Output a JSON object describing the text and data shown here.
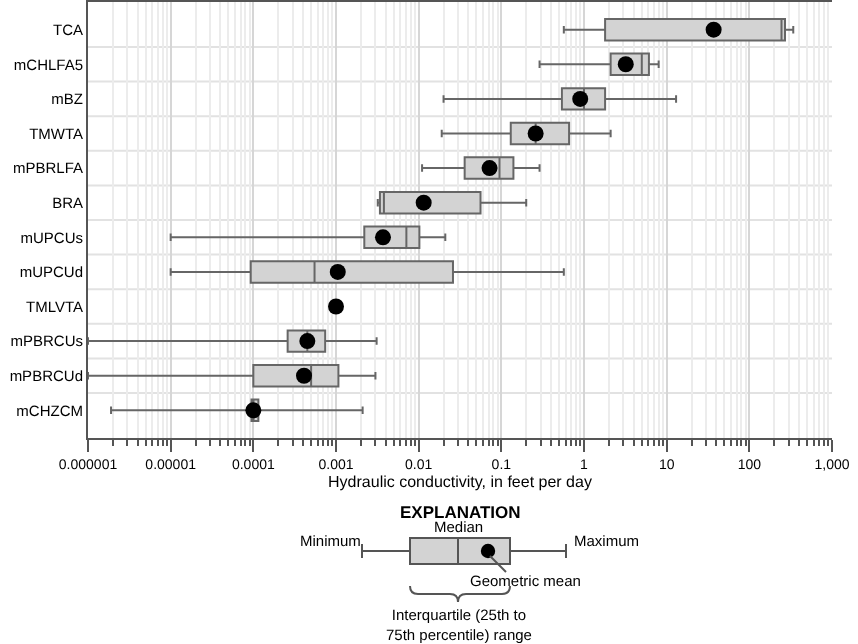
{
  "chart_data": {
    "type": "box",
    "orientation": "horizontal",
    "log": "x",
    "xlabel": "Hydraulic conductivity, in feet per day",
    "categories": [
      "TCA",
      "mCHLFA5",
      "mBZ",
      "TMWTA",
      "mPBRLFA",
      "BRA",
      "mUPCUs",
      "mUPCUd",
      "TMLVTA",
      "mPBRCUs",
      "mPBRCUd",
      "mCHZCM"
    ],
    "boxes": [
      {
        "low": 0.57,
        "q1": 1.8,
        "median": 245,
        "q3": 270,
        "high": 340,
        "mean": 37
      },
      {
        "low": 0.29,
        "q1": 2.1,
        "median": 5.0,
        "q3": 6.1,
        "high": 8.0,
        "mean": 3.2
      },
      {
        "low": 0.02,
        "q1": 0.54,
        "median": 1.0,
        "q3": 1.8,
        "high": 13,
        "mean": 0.9
      },
      {
        "low": 0.019,
        "q1": 0.13,
        "median": 0.26,
        "q3": 0.66,
        "high": 2.1,
        "mean": 0.26
      },
      {
        "low": 0.011,
        "q1": 0.036,
        "median": 0.095,
        "q3": 0.14,
        "high": 0.29,
        "mean": 0.072
      },
      {
        "low": 0.0032,
        "q1": 0.0034,
        "median": 0.0038,
        "q3": 0.056,
        "high": 0.2,
        "mean": 0.0115
      },
      {
        "low": 1e-05,
        "q1": 0.0022,
        "median": 0.0071,
        "q3": 0.0102,
        "high": 0.021,
        "mean": 0.0037
      },
      {
        "low": 1e-05,
        "q1": 9.3e-05,
        "median": 0.00055,
        "q3": 0.026,
        "high": 0.57,
        "mean": 0.00105
      },
      {
        "low": 0.001,
        "q1": 0.001,
        "median": 0.001,
        "q3": 0.001,
        "high": 0.001,
        "mean": 0.001
      },
      {
        "low": 1e-06,
        "q1": 0.00026,
        "median": 0.00045,
        "q3": 0.00074,
        "high": 0.0031,
        "mean": 0.00045
      },
      {
        "low": 1e-06,
        "q1": 0.0001,
        "median": 0.0005,
        "q3": 0.00107,
        "high": 0.003,
        "mean": 0.00041
      },
      {
        "low": 1.9e-06,
        "q1": 9.5e-05,
        "median": 0.0001,
        "q3": 0.000115,
        "high": 0.0021,
        "mean": 0.0001
      }
    ],
    "color": "#d3d3d3",
    "xlim": [
      1e-06,
      1000
    ],
    "xticks": [
      {
        "value": 1e-06,
        "label": "0.000001"
      },
      {
        "value": 1e-05,
        "label": "0.00001"
      },
      0.0001,
      0.001,
      0.01,
      0.1,
      1,
      10,
      100,
      {
        "value": 1000,
        "label": "1,000"
      }
    ],
    "grid": true,
    "marker": "circle",
    "annotations": [
      "EXPLANATION",
      "Minimum",
      "Median",
      "Maximum",
      "Geometric mean",
      "Interquartile (25th to\n75th percentile) range"
    ]
  }
}
